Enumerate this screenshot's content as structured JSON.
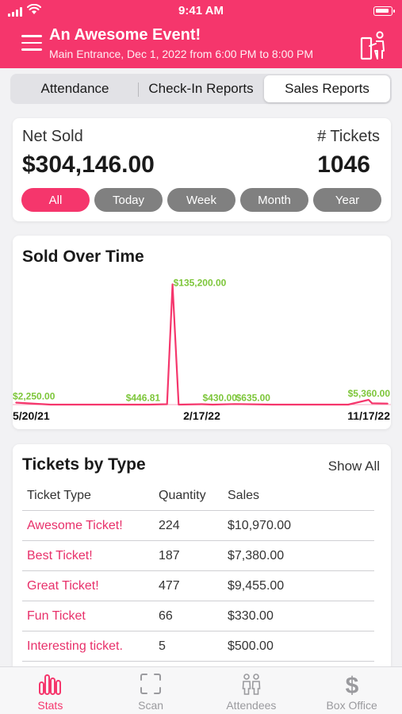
{
  "status": {
    "time": "9:41 AM"
  },
  "header": {
    "title": "An Awesome Event!",
    "subtitle": "Main Entrance, Dec  1, 2022 from 6:00 PM to 8:00 PM"
  },
  "tabs": [
    {
      "label": "Attendance",
      "active": false
    },
    {
      "label": "Check-In Reports",
      "active": false
    },
    {
      "label": "Sales Reports",
      "active": true
    }
  ],
  "summary": {
    "net_label": "Net Sold",
    "net_value": "$304,146.00",
    "tickets_label": "# Tickets",
    "tickets_value": "1046",
    "periods": [
      "All",
      "Today",
      "Week",
      "Month",
      "Year"
    ],
    "active_period": "All"
  },
  "chart_title": "Sold Over Time",
  "chart_data": {
    "type": "line",
    "title": "Sold Over Time",
    "x_ticks": [
      "5/20/21",
      "2/17/22",
      "11/17/22"
    ],
    "series": [
      {
        "color": "#f5366c",
        "points": [
          {
            "x": "5/20/21",
            "y": 2250
          },
          {
            "x": "7/10/21",
            "y": 0
          },
          {
            "x": "12/01/21",
            "y": 0
          },
          {
            "x": "12/28/21",
            "y": 446.81
          },
          {
            "x": "01/05/22",
            "y": 135200
          },
          {
            "x": "01/14/22",
            "y": 0
          },
          {
            "x": "02/17/22",
            "y": 430
          },
          {
            "x": "03/05/22",
            "y": 0
          },
          {
            "x": "04/07/22",
            "y": 635
          },
          {
            "x": "06/01/22",
            "y": 0
          },
          {
            "x": "09/20/22",
            "y": 0
          },
          {
            "x": "10/20/22",
            "y": 5360
          },
          {
            "x": "10/25/22",
            "y": 1500
          },
          {
            "x": "11/17/22",
            "y": 1200
          }
        ]
      }
    ],
    "annotations": [
      {
        "x": "5/20/21",
        "y": 2250,
        "label": "$2,250.00"
      },
      {
        "x": "12/28/21",
        "y": 446.81,
        "label": "$446.81"
      },
      {
        "x": "01/05/22",
        "y": 135200,
        "label": "$135,200.00"
      },
      {
        "x": "02/17/22",
        "y": 430,
        "label": "$430.00"
      },
      {
        "x": "04/07/22",
        "y": 635,
        "label": "$635.00"
      },
      {
        "x": "10/20/22",
        "y": 5360,
        "label": "$5,360.00"
      }
    ],
    "label_color": "#7dc63a",
    "ylim": [
      0,
      140000
    ]
  },
  "tickets": {
    "title": "Tickets by Type",
    "show_all": "Show All",
    "columns": [
      "Ticket Type",
      "Quantity",
      "Sales"
    ],
    "rows": [
      {
        "type": "Awesome Ticket!",
        "quantity": "224",
        "sales": "$10,970.00"
      },
      {
        "type": "Best Ticket!",
        "quantity": "187",
        "sales": "$7,380.00"
      },
      {
        "type": "Great Ticket!",
        "quantity": "477",
        "sales": "$9,455.00"
      },
      {
        "type": "Fun Ticket",
        "quantity": "66",
        "sales": "$330.00"
      },
      {
        "type": "Interesting ticket.",
        "quantity": "5",
        "sales": "$500.00"
      }
    ]
  },
  "tabbar": [
    {
      "label": "Stats",
      "icon": "stats-icon",
      "active": true
    },
    {
      "label": "Scan",
      "icon": "scan-icon",
      "active": false
    },
    {
      "label": "Attendees",
      "icon": "attendees-icon",
      "active": false
    },
    {
      "label": "Box Office",
      "icon": "dollar-icon",
      "active": false
    }
  ],
  "colors": {
    "accent": "#f5366c",
    "label_green": "#7dc63a",
    "pill_gray": "#808080"
  }
}
